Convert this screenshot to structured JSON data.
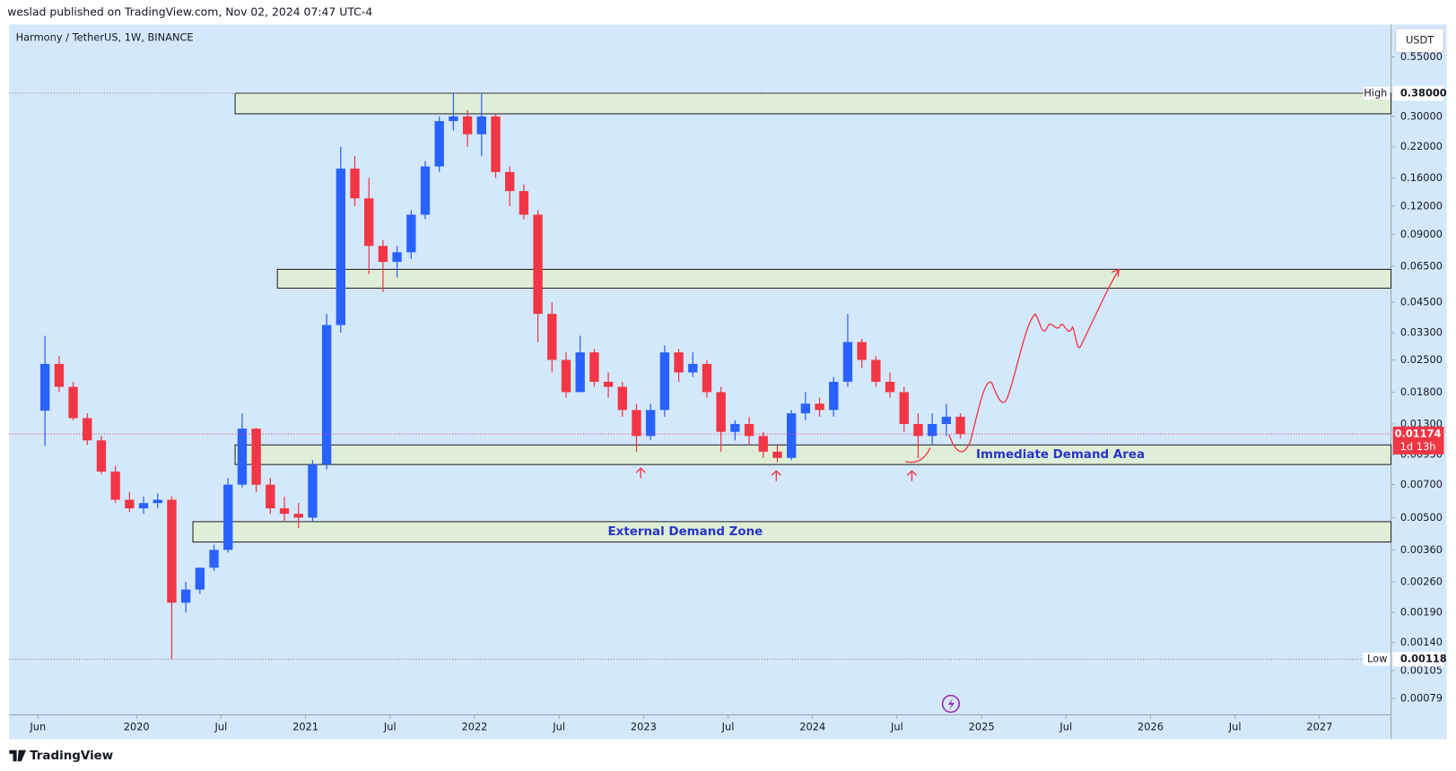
{
  "header": "weslad published on TradingView.com, Nov 02, 2024 07:47 UTC-4",
  "footer": "TradingView",
  "currency_button": "USDT",
  "chart_data": {
    "type": "candlestick",
    "title": "Harmony / TetherUS, 1W, BINANCE",
    "log_scale": true,
    "up_color": "#2962ff",
    "down_color": "#f23645",
    "x": [
      "2019-06",
      "2019-07",
      "2019-08",
      "2019-09",
      "2019-10",
      "2019-11",
      "2019-12",
      "2020-01",
      "2020-02",
      "2020-03",
      "2020-04",
      "2020-05",
      "2020-06",
      "2020-07",
      "2020-08",
      "2020-09",
      "2020-10",
      "2020-11",
      "2020-12",
      "2021-01",
      "2021-02",
      "2021-03",
      "2021-04",
      "2021-05",
      "2021-06",
      "2021-07",
      "2021-08",
      "2021-09",
      "2021-10",
      "2021-11",
      "2021-12",
      "2022-01",
      "2022-02",
      "2022-03",
      "2022-04",
      "2022-05",
      "2022-06",
      "2022-07",
      "2022-08",
      "2022-09",
      "2022-10",
      "2022-11",
      "2022-12",
      "2023-01",
      "2023-02",
      "2023-03",
      "2023-04",
      "2023-05",
      "2023-06",
      "2023-07",
      "2023-08",
      "2023-09",
      "2023-10",
      "2023-11",
      "2023-12",
      "2024-01",
      "2024-02",
      "2024-03",
      "2024-04",
      "2024-05",
      "2024-06",
      "2024-07",
      "2024-08",
      "2024-09",
      "2024-10",
      "2024-11"
    ],
    "open": [
      0.0149,
      0.024,
      0.019,
      0.0138,
      0.011,
      0.008,
      0.006,
      0.0055,
      0.0058,
      0.006,
      0.0021,
      0.0024,
      0.003,
      0.0036,
      0.007,
      0.0124,
      0.007,
      0.0055,
      0.0052,
      0.005,
      0.0086,
      0.0357,
      0.176,
      0.13,
      0.08,
      0.068,
      0.075,
      0.11,
      0.18,
      0.286,
      0.3,
      0.25,
      0.3,
      0.17,
      0.14,
      0.11,
      0.04,
      0.025,
      0.018,
      0.027,
      0.02,
      0.019,
      0.015,
      0.0115,
      0.015,
      0.027,
      0.022,
      0.024,
      0.018,
      0.012,
      0.013,
      0.0115,
      0.0098,
      0.0092,
      0.0145,
      0.016,
      0.015,
      0.02,
      0.03,
      0.025,
      0.02,
      0.018,
      0.013,
      0.0115,
      0.013,
      0.014
    ],
    "high": [
      0.032,
      0.026,
      0.02,
      0.0145,
      0.0115,
      0.0085,
      0.0065,
      0.0062,
      0.0064,
      0.0062,
      0.0026,
      0.003,
      0.0038,
      0.0075,
      0.0145,
      0.0125,
      0.0075,
      0.0062,
      0.0058,
      0.009,
      0.04,
      0.22,
      0.2,
      0.16,
      0.085,
      0.08,
      0.115,
      0.19,
      0.3,
      0.38,
      0.32,
      0.38,
      0.31,
      0.18,
      0.15,
      0.115,
      0.045,
      0.027,
      0.032,
      0.028,
      0.022,
      0.02,
      0.016,
      0.016,
      0.029,
      0.028,
      0.027,
      0.025,
      0.019,
      0.0135,
      0.014,
      0.012,
      0.0105,
      0.015,
      0.018,
      0.017,
      0.021,
      0.04,
      0.031,
      0.026,
      0.022,
      0.019,
      0.0145,
      0.0145,
      0.016,
      0.0145
    ],
    "low": [
      0.0104,
      0.018,
      0.0135,
      0.0105,
      0.0078,
      0.0058,
      0.0053,
      0.0052,
      0.0055,
      0.00118,
      0.0019,
      0.0023,
      0.0029,
      0.0035,
      0.0068,
      0.0065,
      0.0052,
      0.0048,
      0.0045,
      0.0048,
      0.0082,
      0.033,
      0.12,
      0.06,
      0.05,
      0.058,
      0.07,
      0.105,
      0.17,
      0.26,
      0.22,
      0.2,
      0.16,
      0.12,
      0.105,
      0.03,
      0.022,
      0.017,
      0.018,
      0.019,
      0.017,
      0.014,
      0.0098,
      0.011,
      0.014,
      0.02,
      0.021,
      0.017,
      0.0098,
      0.011,
      0.0105,
      0.0092,
      0.0088,
      0.009,
      0.0135,
      0.014,
      0.014,
      0.019,
      0.023,
      0.019,
      0.017,
      0.012,
      0.0092,
      0.0105,
      0.0115,
      0.0112
    ],
    "close": [
      0.024,
      0.019,
      0.0138,
      0.011,
      0.008,
      0.006,
      0.0055,
      0.0058,
      0.006,
      0.0021,
      0.0024,
      0.003,
      0.0036,
      0.007,
      0.0124,
      0.007,
      0.0055,
      0.0052,
      0.005,
      0.0086,
      0.0357,
      0.176,
      0.13,
      0.08,
      0.068,
      0.075,
      0.11,
      0.18,
      0.286,
      0.3,
      0.25,
      0.3,
      0.17,
      0.14,
      0.11,
      0.04,
      0.025,
      0.018,
      0.027,
      0.02,
      0.019,
      0.015,
      0.0115,
      0.015,
      0.027,
      0.022,
      0.024,
      0.018,
      0.012,
      0.013,
      0.0115,
      0.0098,
      0.0092,
      0.0145,
      0.016,
      0.015,
      0.02,
      0.03,
      0.025,
      0.02,
      0.018,
      0.013,
      0.0115,
      0.013,
      0.014,
      0.01174
    ],
    "xlim": [
      2019.247,
      2027.423
    ],
    "xticks": [
      {
        "value": 2019.4167,
        "label": "Jun"
      },
      {
        "value": 2020,
        "label": "2020"
      },
      {
        "value": 2020.5,
        "label": "Jul"
      },
      {
        "value": 2021,
        "label": "2021"
      },
      {
        "value": 2021.5,
        "label": "Jul"
      },
      {
        "value": 2022,
        "label": "2022"
      },
      {
        "value": 2022.5,
        "label": "Jul"
      },
      {
        "value": 2023,
        "label": "2023"
      },
      {
        "value": 2023.5,
        "label": "Jul"
      },
      {
        "value": 2024,
        "label": "2024"
      },
      {
        "value": 2024.5,
        "label": "Jul"
      },
      {
        "value": 2025,
        "label": "2025"
      },
      {
        "value": 2025.5,
        "label": "Jul"
      },
      {
        "value": 2026,
        "label": "2026"
      },
      {
        "value": 2026.5,
        "label": "Jul"
      },
      {
        "value": 2027,
        "label": "2027"
      }
    ],
    "ylim": [
      0.000668,
      0.766
    ],
    "yticks": [
      {
        "value": 0.55,
        "label": "0.55000"
      },
      {
        "value": 0.3,
        "label": "0.30000"
      },
      {
        "value": 0.22,
        "label": "0.22000"
      },
      {
        "value": 0.16,
        "label": "0.16000"
      },
      {
        "value": 0.12,
        "label": "0.12000"
      },
      {
        "value": 0.09,
        "label": "0.09000"
      },
      {
        "value": 0.065,
        "label": "0.06500"
      },
      {
        "value": 0.045,
        "label": "0.04500"
      },
      {
        "value": 0.033,
        "label": "0.03300"
      },
      {
        "value": 0.025,
        "label": "0.02500"
      },
      {
        "value": 0.018,
        "label": "0.01800"
      },
      {
        "value": 0.013,
        "label": "0.01300"
      },
      {
        "value": 0.0095,
        "label": "0.00950"
      },
      {
        "value": 0.007,
        "label": "0.00700"
      },
      {
        "value": 0.005,
        "label": "0.00500"
      },
      {
        "value": 0.0036,
        "label": "0.00360"
      },
      {
        "value": 0.0026,
        "label": "0.00260"
      },
      {
        "value": 0.0019,
        "label": "0.00190"
      },
      {
        "value": 0.0014,
        "label": "0.00140"
      },
      {
        "value": 0.00105,
        "label": "0.00105"
      },
      {
        "value": 0.00079,
        "label": "0.00079"
      }
    ],
    "markers": [
      {
        "name": "High",
        "value": 0.38,
        "value_label": "0.38000"
      },
      {
        "name": "Low",
        "value": 0.00118,
        "value_label": "0.00118"
      }
    ],
    "last_price": {
      "value": 0.01174,
      "value_label": "0.01174",
      "countdown": "1d 13h"
    },
    "zones": [
      {
        "start": "2020-08",
        "range": [
          0.308,
          0.38
        ]
      },
      {
        "start": "2020-11",
        "range": [
          0.052,
          0.063
        ]
      },
      {
        "start": "2020-08",
        "range": [
          0.0086,
          0.0105
        ],
        "label": "Immediate Demand Area"
      },
      {
        "start": "2020-05",
        "range": [
          0.0039,
          0.0048
        ],
        "label": "External Demand Zone"
      }
    ]
  }
}
